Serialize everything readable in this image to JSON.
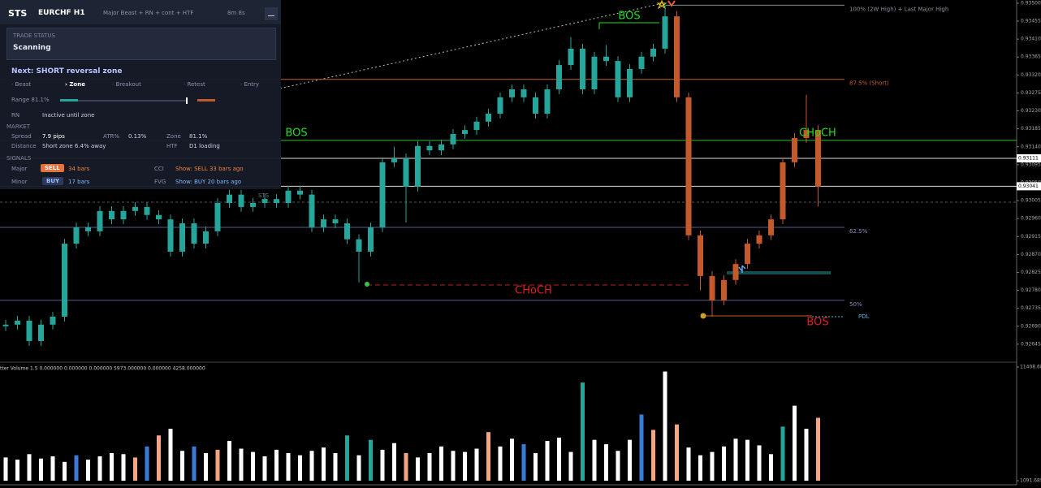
{
  "panel": {
    "title": "STS",
    "symbol": "EURCHF H1",
    "modes": "Major Beast + RN + cont + HTF",
    "timer": "8m 8s",
    "status_label": "TRADE STATUS",
    "status": "Scanning",
    "next": "Next: SHORT reversal zone",
    "steps": [
      "· Beast",
      "› Zone",
      "· Breakout",
      "· Retest",
      "· Entry"
    ],
    "range": "Range 81.1%",
    "rn_label": "RN",
    "rn": "Inactive until zone",
    "market_label": "MARKET",
    "market": [
      [
        "Spread",
        "7.9 pips",
        "ATR%",
        "0.13%",
        "Zone",
        "81.1%"
      ],
      [
        "Distance",
        "Short zone 6.4% away",
        "HTF",
        "D1 loading"
      ]
    ],
    "signals_label": "SIGNALS",
    "signals": [
      [
        "Major",
        "SELL",
        "34 bars",
        "CCI",
        "Show: SELL 33 bars ago"
      ],
      [
        "Minor",
        "BUY",
        "17 bars",
        "FVG",
        "Show: BUY 20 bars ago"
      ]
    ],
    "footer": "STS"
  },
  "chart_data": [
    {
      "type": "candlestick",
      "ylim": [
        0.92602,
        0.93508
      ],
      "yticks": [
        {
          "value": 0.935,
          "label": "0.93500"
        },
        {
          "value": 0.93455,
          "label": "0.93455"
        },
        {
          "value": 0.9341,
          "label": "0.93410"
        },
        {
          "value": 0.93365,
          "label": "0.93365"
        },
        {
          "value": 0.9332,
          "label": "0.93320"
        },
        {
          "value": 0.93275,
          "label": "0.93275"
        },
        {
          "value": 0.9323,
          "label": "0.93230"
        },
        {
          "value": 0.93185,
          "label": "0.93185"
        },
        {
          "value": 0.9314,
          "label": "0.93140"
        },
        {
          "value": 0.93095,
          "label": "0.93095"
        },
        {
          "value": 0.9305,
          "label": "0.93050"
        },
        {
          "value": 0.93005,
          "label": "0.93005"
        },
        {
          "value": 0.9296,
          "label": "0.92960"
        },
        {
          "value": 0.92915,
          "label": "0.92915"
        },
        {
          "value": 0.9287,
          "label": "0.92870"
        },
        {
          "value": 0.92825,
          "label": "0.92825"
        },
        {
          "value": 0.9278,
          "label": "0.92780"
        },
        {
          "value": 0.92735,
          "label": "0.92735"
        },
        {
          "value": 0.9269,
          "label": "0.92690"
        },
        {
          "value": 0.92645,
          "label": "0.92645"
        }
      ],
      "series": [
        {
          "color": "#26a69a",
          "candles": [
            [
              0.9269,
              0.92706,
              0.92678,
              0.92694
            ],
            [
              0.92694,
              0.92716,
              0.92682,
              0.92704
            ],
            [
              0.92704,
              0.92716,
              0.92641,
              0.92653
            ],
            [
              0.92653,
              0.92706,
              0.92641,
              0.92694
            ],
            [
              0.92694,
              0.92726,
              0.92682,
              0.92714
            ],
            [
              0.92714,
              0.92909,
              0.92702,
              0.92897
            ],
            [
              0.92897,
              0.9295,
              0.92885,
              0.92938
            ],
            [
              0.92938,
              0.9295,
              0.92916,
              0.92928
            ],
            [
              0.92928,
              0.92991,
              0.92916,
              0.92979
            ],
            [
              0.92979,
              0.92991,
              0.92946,
              0.92958
            ],
            [
              0.92958,
              0.92991,
              0.92946,
              0.92979
            ],
            [
              0.92979,
              0.93001,
              0.92967,
              0.92989
            ],
            [
              0.92989,
              0.93001,
              0.92957,
              0.92969
            ],
            [
              0.92969,
              0.92981,
              0.92946,
              0.92958
            ],
            [
              0.92958,
              0.9297,
              0.92865,
              0.92877
            ],
            [
              0.92877,
              0.9296,
              0.92865,
              0.92948
            ],
            [
              0.92948,
              0.9296,
              0.92885,
              0.92897
            ],
            [
              0.92897,
              0.9294,
              0.92885,
              0.92928
            ],
            [
              0.92928,
              0.93011,
              0.92916,
              0.92999
            ],
            [
              0.92999,
              0.93032,
              0.92987,
              0.9302
            ],
            [
              0.9302,
              0.93032,
              0.92977,
              0.92989
            ],
            [
              0.92989,
              0.93011,
              0.92977,
              0.92999
            ],
            [
              0.92999,
              0.93021,
              0.92987,
              0.93009
            ],
            [
              0.93009,
              0.93021,
              0.92987,
              0.92999
            ],
            [
              0.92999,
              0.93042,
              0.92987,
              0.9303
            ],
            [
              0.9303,
              0.93042,
              0.93008,
              0.9302
            ],
            [
              0.9302,
              0.93032,
              0.92926,
              0.92938
            ],
            [
              0.92938,
              0.9297,
              0.92926,
              0.92958
            ],
            [
              0.92958,
              0.9297,
              0.92936,
              0.92948
            ],
            [
              0.92948,
              0.9296,
              0.92896,
              0.92908
            ],
            [
              0.92908,
              0.9292,
              0.928,
              0.92877
            ],
            [
              0.92877,
              0.9295,
              0.92865,
              0.92938
            ],
            [
              0.92938,
              0.93113,
              0.92926,
              0.93101
            ],
            [
              0.93101,
              0.9314,
              0.93089,
              0.93111
            ],
            [
              0.93111,
              0.93123,
              0.9295,
              0.9304
            ],
            [
              0.9304,
              0.93154,
              0.93028,
              0.93142
            ],
            [
              0.93142,
              0.93154,
              0.93119,
              0.93131
            ],
            [
              0.93131,
              0.93158,
              0.93119,
              0.93146
            ],
            [
              0.93146,
              0.93184,
              0.93134,
              0.93172
            ],
            [
              0.93172,
              0.93194,
              0.9316,
              0.93182
            ],
            [
              0.93182,
              0.93215,
              0.9317,
              0.93203
            ],
            [
              0.93203,
              0.93235,
              0.93191,
              0.93223
            ],
            [
              0.93223,
              0.93276,
              0.93211,
              0.93264
            ],
            [
              0.93264,
              0.93296,
              0.93252,
              0.93284
            ],
            [
              0.93284,
              0.93296,
              0.93252,
              0.93264
            ],
            [
              0.93264,
              0.93276,
              0.93211,
              0.93223
            ],
            [
              0.93223,
              0.93296,
              0.93211,
              0.93284
            ],
            [
              0.93284,
              0.93357,
              0.93272,
              0.93345
            ],
            [
              0.93345,
              0.93415,
              0.93333,
              0.93386
            ],
            [
              0.93386,
              0.93398,
              0.93272,
              0.93284
            ],
            [
              0.93284,
              0.93378,
              0.93272,
              0.93366
            ],
            [
              0.93366,
              0.93395,
              0.93343,
              0.93355
            ],
            [
              0.93355,
              0.93367,
              0.93252,
              0.93264
            ],
            [
              0.93264,
              0.93347,
              0.93252,
              0.93335
            ],
            [
              0.93335,
              0.93378,
              0.93323,
              0.93366
            ],
            [
              0.93366,
              0.93398,
              0.93354,
              0.93386
            ],
            [
              0.93386,
              0.935,
              0.93374,
              0.93467
            ]
          ]
        },
        {
          "color": "#c4592b",
          "candles": [
            [
              0.93467,
              0.9348,
              0.93252,
              0.93264
            ],
            [
              0.93264,
              0.93276,
              0.92906,
              0.92918
            ],
            [
              0.92918,
              0.9293,
              0.9278,
              0.92816
            ],
            [
              0.92816,
              0.92828,
              0.92714,
              0.92755
            ],
            [
              0.92755,
              0.92818,
              0.92743,
              0.92806
            ],
            [
              0.92806,
              0.92858,
              0.92794,
              0.92846
            ],
            [
              0.92846,
              0.92909,
              0.92834,
              0.92897
            ],
            [
              0.92897,
              0.9293,
              0.92885,
              0.92918
            ],
            [
              0.92918,
              0.9297,
              0.92906,
              0.92958
            ],
            [
              0.92958,
              0.93113,
              0.92946,
              0.93101
            ],
            [
              0.93101,
              0.93174,
              0.93089,
              0.93162
            ],
            [
              0.93162,
              0.9327,
              0.9315,
              0.93182
            ],
            [
              0.93182,
              0.93194,
              0.9299,
              0.9304
            ]
          ]
        }
      ],
      "levels": [
        {
          "label": "100% (2W High) + Last Major High",
          "value": 0.93495,
          "color": "#8a8f98"
        },
        {
          "label": "87.5% (Short)",
          "value": 0.93309,
          "color": "#c8602a"
        },
        {
          "label": "62.5%",
          "value": 0.92938,
          "color": "#5a5f8a"
        },
        {
          "label": "50%",
          "value": 0.92755,
          "color": "#5a5f8a"
        },
        {
          "label": "PDL",
          "value": 0.92714,
          "color": "#4fb3d9"
        }
      ],
      "lines": [
        {
          "value": 0.93156,
          "color": "#2fbf2f"
        },
        {
          "value": 0.93001,
          "color": "#555"
        }
      ],
      "price_labels": [
        {
          "value": 0.93111,
          "label": "0.93111"
        },
        {
          "value": 0.93041,
          "label": "0.93041"
        }
      ],
      "annotations": [
        {
          "text": "BOS",
          "color": "#22dd22"
        },
        {
          "text": "BOS",
          "color": "#22dd22"
        },
        {
          "text": "CHoCH",
          "color": "#e02020"
        },
        {
          "text": "CHoCH",
          "color": "#22dd22"
        },
        {
          "text": "BOS",
          "color": "#e02020"
        }
      ]
    },
    {
      "type": "bar",
      "title": "tter Volume 1.5 0.000000 0.000000 0.000000 5973.000000 0.000000 4258.000000",
      "ylim": [
        1091.685,
        11408.685
      ],
      "yticks": [
        1091.685,
        11408.685
      ],
      "values": [
        3200,
        3000,
        3500,
        3100,
        3300,
        2800,
        3400,
        3000,
        3300,
        3600,
        3500,
        3200,
        4200,
        5200,
        5800,
        3800,
        4200,
        3600,
        3900,
        4700,
        4000,
        3700,
        3300,
        3900,
        3600,
        3400,
        3800,
        4100,
        3600,
        5200,
        3400,
        4800,
        3900,
        4500,
        3600,
        3200,
        3600,
        4200,
        3800,
        3700,
        4000,
        5500,
        4200,
        4900,
        4400,
        3600,
        4700,
        5000,
        3700,
        10000,
        4800,
        4400,
        3800,
        4800,
        7100,
        5700,
        11000,
        6200,
        4100,
        3400,
        3700,
        4200,
        4900,
        4800,
        4300,
        3500,
        6000,
        7900,
        5800,
        6800
      ],
      "colors": [
        "#ffffff",
        "#ffffff",
        "#ffffff",
        "#ffffff",
        "#ffffff",
        "#ffffff",
        "#3a7bd5",
        "#ffffff",
        "#ffffff",
        "#ffffff",
        "#ffffff",
        "#f4a582",
        "#3a7bd5",
        "#f4a582",
        "#ffffff",
        "#ffffff",
        "#3a7bd5",
        "#ffffff",
        "#f4a582",
        "#ffffff",
        "#ffffff",
        "#ffffff",
        "#ffffff",
        "#ffffff",
        "#ffffff",
        "#ffffff",
        "#ffffff",
        "#ffffff",
        "#ffffff",
        "#26a69a",
        "#ffffff",
        "#26a69a",
        "#ffffff",
        "#ffffff",
        "#f4a582",
        "#ffffff",
        "#ffffff",
        "#ffffff",
        "#ffffff",
        "#ffffff",
        "#ffffff",
        "#f4a582",
        "#ffffff",
        "#ffffff",
        "#3a7bd5",
        "#ffffff",
        "#ffffff",
        "#ffffff",
        "#ffffff",
        "#26a69a",
        "#ffffff",
        "#ffffff",
        "#ffffff",
        "#ffffff",
        "#3a7bd5",
        "#f4a582",
        "#ffffff",
        "#f4a582",
        "#ffffff",
        "#ffffff",
        "#ffffff",
        "#ffffff",
        "#ffffff",
        "#ffffff",
        "#ffffff",
        "#ffffff",
        "#26a69a",
        "#ffffff",
        "#ffffff",
        "#f4a582"
      ]
    }
  ]
}
